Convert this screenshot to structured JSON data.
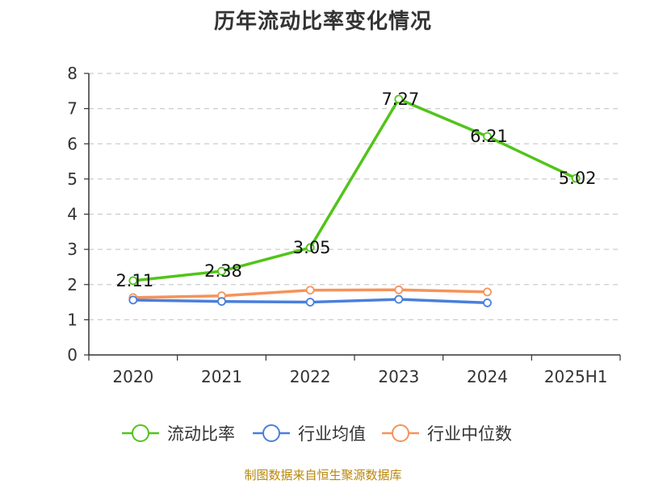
{
  "title": "历年流动比率变化情况",
  "source_note": "制图数据来自恒生聚源数据库",
  "chart_data": {
    "type": "line",
    "categories": [
      "2020",
      "2021",
      "2022",
      "2023",
      "2024",
      "2025H1"
    ],
    "ylim": [
      0,
      8
    ],
    "yticks": [
      0,
      1,
      2,
      3,
      4,
      5,
      6,
      7,
      8
    ],
    "grid": true,
    "legend_position": "bottom",
    "series": [
      {
        "name": "流动比率",
        "color": "#52c41a",
        "values": [
          2.11,
          2.38,
          3.05,
          7.27,
          6.21,
          5.02
        ],
        "labels": [
          "2.11",
          "2.38",
          "3.05",
          "7.27",
          "6.21",
          "5.02"
        ]
      },
      {
        "name": "行业均值",
        "color": "#4a7fdc",
        "values": [
          1.56,
          1.52,
          1.5,
          1.58,
          1.48,
          null
        ]
      },
      {
        "name": "行业中位数",
        "color": "#f5935a",
        "values": [
          1.63,
          1.68,
          1.84,
          1.85,
          1.79,
          null
        ]
      }
    ]
  }
}
